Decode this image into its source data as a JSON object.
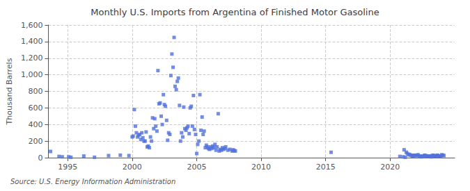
{
  "chart_data": {
    "type": "scatter",
    "title": "Monthly U.S. Imports from Argentina of Finished Motor Gasoline",
    "ylabel": "Thousand Barrels",
    "annotation": "Source: U.S. Energy Information Administration",
    "marker": "square",
    "grid": true,
    "xlim": [
      1993.5,
      2025.0
    ],
    "xticks": [
      1995,
      2000,
      2005,
      2010,
      2015,
      2020
    ],
    "ylim": [
      0,
      1600
    ],
    "yticks": [
      0,
      200,
      400,
      600,
      800,
      {
        "value": 1000,
        "label": "1,000"
      },
      {
        "value": 1200,
        "label": "1,200"
      },
      {
        "value": 1400,
        "label": "1,400"
      },
      {
        "value": 1600,
        "label": "1,600"
      }
    ],
    "x": [
      1993.67,
      1994.33,
      1994.58,
      1995.08,
      1995.25,
      1996.25,
      1997.08,
      1998.17,
      1999.08,
      1999.75,
      2000.0,
      2000.08,
      2000.17,
      2000.25,
      2000.33,
      2000.42,
      2000.5,
      2000.58,
      2000.67,
      2000.75,
      2000.83,
      2000.92,
      2001.0,
      2001.08,
      2001.17,
      2001.25,
      2001.33,
      2001.42,
      2001.5,
      2001.58,
      2001.67,
      2001.75,
      2001.83,
      2001.92,
      2002.0,
      2002.08,
      2002.17,
      2002.25,
      2002.33,
      2002.42,
      2002.5,
      2002.58,
      2002.67,
      2002.75,
      2002.83,
      2002.92,
      2003.0,
      2003.08,
      2003.17,
      2003.25,
      2003.33,
      2003.42,
      2003.5,
      2003.58,
      2003.67,
      2003.75,
      2003.83,
      2003.92,
      2004.0,
      2004.08,
      2004.17,
      2004.25,
      2004.33,
      2004.42,
      2004.5,
      2004.58,
      2004.67,
      2004.75,
      2004.83,
      2004.92,
      2005.0,
      2005.08,
      2005.17,
      2005.25,
      2005.33,
      2005.42,
      2005.5,
      2005.58,
      2005.67,
      2005.75,
      2005.83,
      2005.92,
      2006.0,
      2006.08,
      2006.17,
      2006.25,
      2006.33,
      2006.42,
      2006.5,
      2006.58,
      2006.67,
      2006.75,
      2006.83,
      2006.92,
      2007.0,
      2007.08,
      2007.17,
      2007.25,
      2007.42,
      2007.58,
      2007.75,
      2007.83,
      2007.92,
      2008.0,
      2015.42,
      2020.75,
      2021.0,
      2021.08,
      2021.17,
      2021.25,
      2021.33,
      2021.42,
      2021.5,
      2021.58,
      2021.67,
      2021.75,
      2021.83,
      2021.92,
      2022.0,
      2022.08,
      2022.17,
      2022.25,
      2022.33,
      2022.42,
      2022.5,
      2022.58,
      2022.67,
      2022.75,
      2022.83,
      2022.92,
      2023.0,
      2023.08,
      2023.17,
      2023.25,
      2023.33,
      2023.42,
      2023.5,
      2023.58,
      2023.67,
      2023.75,
      2023.83,
      2023.92,
      2024.0,
      2024.08,
      2024.17
    ],
    "values": [
      75,
      15,
      10,
      10,
      5,
      20,
      5,
      25,
      30,
      25,
      250,
      260,
      580,
      380,
      300,
      250,
      270,
      280,
      220,
      300,
      240,
      200,
      200,
      310,
      130,
      140,
      120,
      250,
      200,
      480,
      350,
      470,
      380,
      320,
      1050,
      650,
      660,
      500,
      400,
      760,
      640,
      620,
      450,
      210,
      300,
      280,
      990,
      1250,
      1090,
      1450,
      860,
      820,
      920,
      960,
      630,
      200,
      300,
      250,
      610,
      350,
      330,
      360,
      380,
      290,
      600,
      620,
      380,
      750,
      340,
      280,
      50,
      160,
      200,
      760,
      330,
      490,
      280,
      320,
      120,
      150,
      130,
      110,
      100,
      130,
      110,
      140,
      120,
      160,
      90,
      130,
      530,
      80,
      100,
      90,
      120,
      100,
      110,
      130,
      90,
      100,
      80,
      95,
      85,
      80,
      65,
      15,
      10,
      95,
      5,
      65,
      50,
      35,
      40,
      30,
      25,
      20,
      30,
      25,
      25,
      30,
      35,
      20,
      15,
      10,
      20,
      15,
      30,
      25,
      20,
      15,
      20,
      15,
      10,
      25,
      30,
      20,
      15,
      25,
      30,
      20,
      15,
      20,
      35,
      30,
      25
    ]
  }
}
